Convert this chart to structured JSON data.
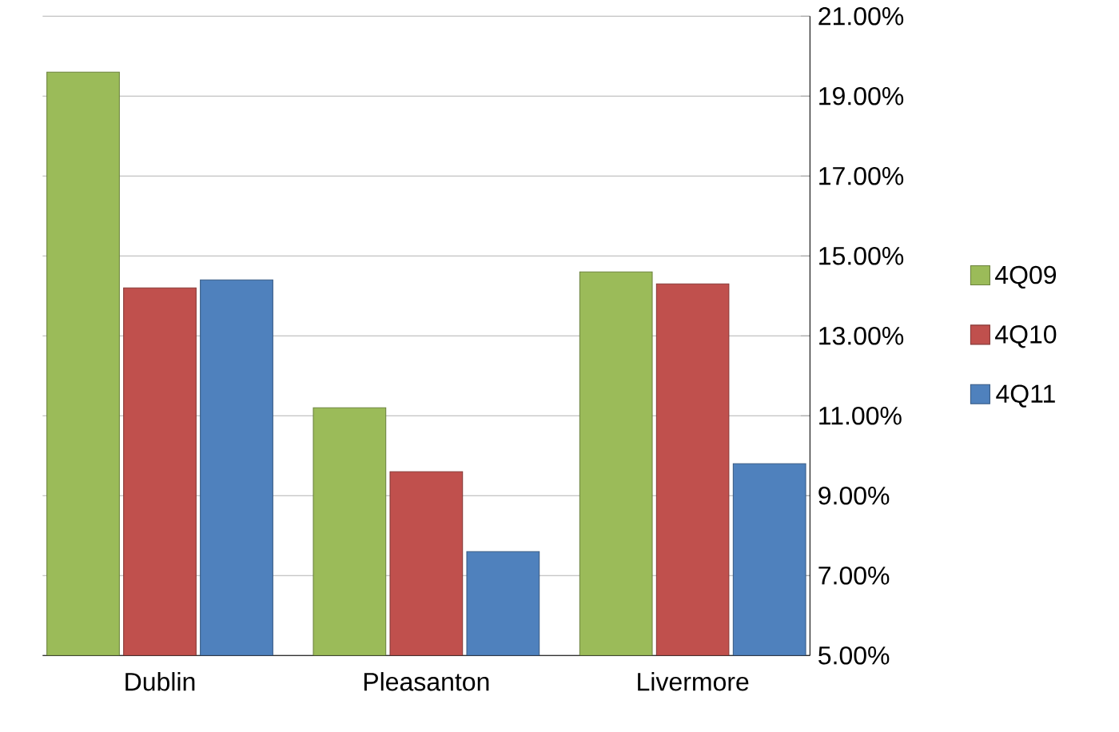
{
  "chart_data": {
    "type": "bar",
    "categories": [
      "Dublin",
      "Pleasanton",
      "Livermore"
    ],
    "series": [
      {
        "name": "4Q09",
        "color": "#9bbb59",
        "values": [
          19.6,
          11.2,
          14.6
        ]
      },
      {
        "name": "4Q10",
        "color": "#c0504d",
        "values": [
          14.2,
          9.6,
          14.3
        ]
      },
      {
        "name": "4Q11",
        "color": "#4f81bd",
        "values": [
          14.4,
          7.6,
          9.8
        ]
      }
    ],
    "ylim": [
      5,
      21
    ],
    "yticks": [
      {
        "value": 5,
        "label": "5.00%"
      },
      {
        "value": 7,
        "label": "7.00%"
      },
      {
        "value": 9,
        "label": "9.00%"
      },
      {
        "value": 11,
        "label": "11.00%"
      },
      {
        "value": 13,
        "label": "13.00%"
      },
      {
        "value": 15,
        "label": "15.00%"
      },
      {
        "value": 17,
        "label": "17.00%"
      },
      {
        "value": 19,
        "label": "19.00%"
      },
      {
        "value": 21,
        "label": "21.00%"
      }
    ],
    "grid": "y",
    "legend": "right"
  }
}
